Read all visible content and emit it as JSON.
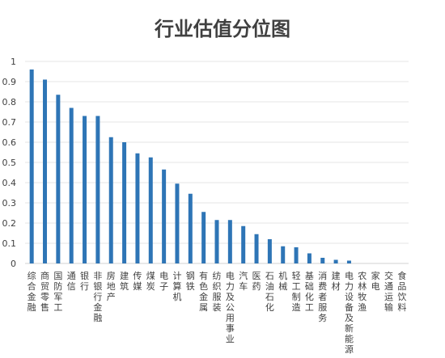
{
  "chart_data": {
    "type": "bar",
    "title": "行业估值分位图",
    "xlabel": "",
    "ylabel": "",
    "ylim": [
      0,
      1
    ],
    "yticks": [
      0,
      0.1,
      0.2,
      0.3,
      0.4,
      0.5,
      0.6,
      0.7,
      0.8,
      0.9,
      1
    ],
    "ytick_labels": [
      "0",
      "0.1",
      "0.2",
      "0.3",
      "0.4",
      "0.5",
      "0.6",
      "0.7",
      "0.8",
      "0.9",
      "1"
    ],
    "grid": true,
    "legend": "none",
    "bar_color": "#2E75B6",
    "categories": [
      "综合金融",
      "商贸零售",
      "国防军工",
      "通信",
      "银行",
      "非银行金融",
      "房地产",
      "建筑",
      "传媒",
      "煤炭",
      "电子",
      "计算机",
      "钢铁",
      "有色金属",
      "纺织服装",
      "电力及公用事业",
      "汽车",
      "医药",
      "石油石化",
      "机械",
      "轻工制造",
      "基础化工",
      "消费者服务",
      "建材",
      "电力设备及新能源",
      "农林牧渔",
      "家电",
      "交通运输",
      "食品饮料"
    ],
    "values": [
      0.96,
      0.91,
      0.835,
      0.77,
      0.73,
      0.73,
      0.625,
      0.6,
      0.545,
      0.525,
      0.465,
      0.395,
      0.345,
      0.255,
      0.215,
      0.215,
      0.185,
      0.145,
      0.12,
      0.085,
      0.08,
      0.05,
      0.028,
      0.018,
      0.014,
      0.0,
      0.0,
      0.0,
      0.0
    ]
  }
}
